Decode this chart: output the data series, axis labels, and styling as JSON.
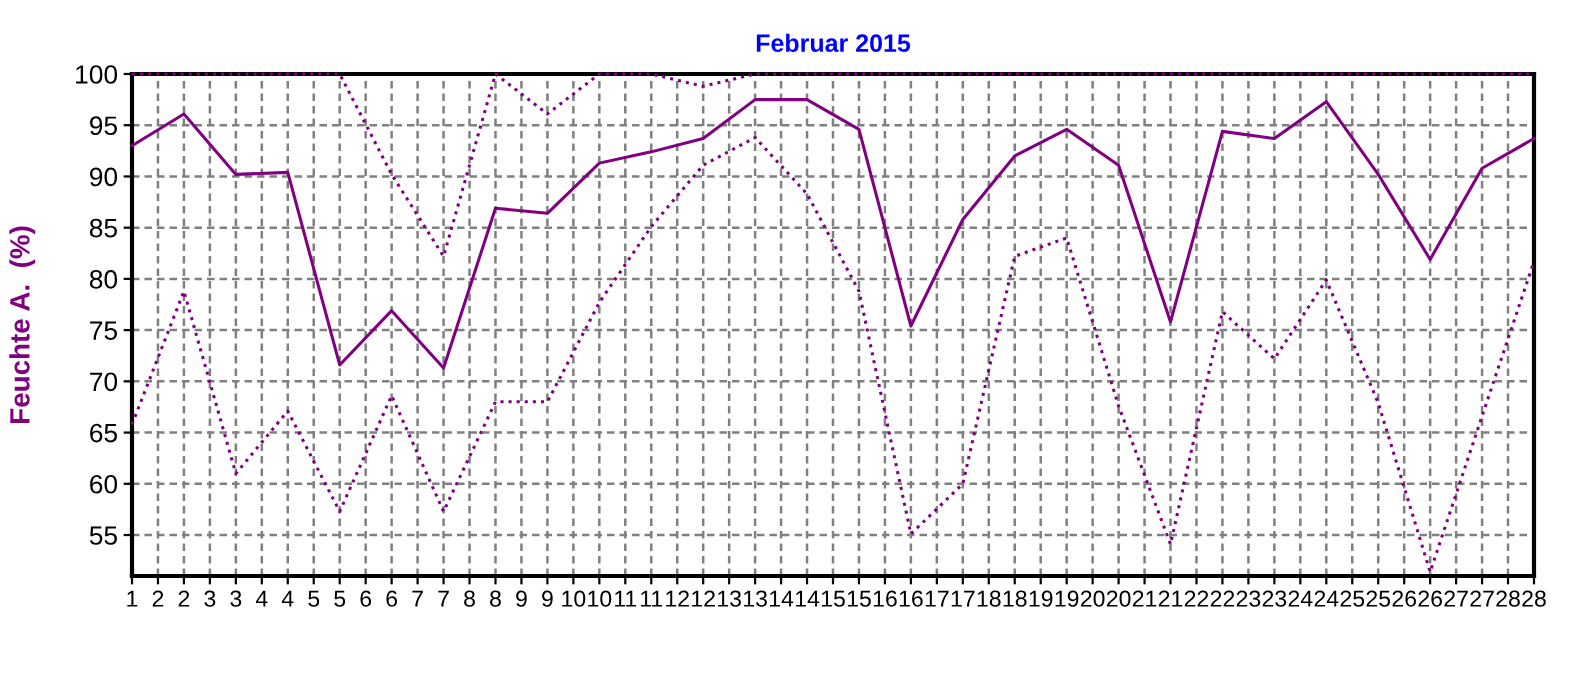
{
  "chart_data": {
    "type": "line",
    "title": "Februar 2015",
    "ylabel": "Feuchte A.  (%)",
    "x": [
      1,
      2,
      3,
      4,
      5,
      6,
      7,
      8,
      9,
      10,
      11,
      12,
      13,
      14,
      15,
      16,
      17,
      18,
      19,
      20,
      21,
      22,
      23,
      24,
      25,
      26,
      27,
      28
    ],
    "series": [
      {
        "color": "#800080",
        "line_style": "dotted",
        "values": [
          100,
          100,
          100,
          100,
          100,
          90.2,
          82.2,
          100,
          96.1,
          100,
          100,
          98.8,
          100,
          100,
          100,
          100,
          100,
          100,
          100,
          100,
          100,
          100,
          100,
          100,
          100,
          100,
          100,
          100
        ]
      },
      {
        "color": "#800080",
        "line_style": "solid",
        "values": [
          93.0,
          96.1,
          90.2,
          90.4,
          71.6,
          76.9,
          71.3,
          86.9,
          86.4,
          91.3,
          92.4,
          93.7,
          97.5,
          97.5,
          94.6,
          75.4,
          85.8,
          92.0,
          94.6,
          91.1,
          75.8,
          94.4,
          93.7,
          97.3,
          90.2,
          81.9,
          90.8,
          93.7
        ]
      },
      {
        "color": "#800080",
        "line_style": "dotted",
        "values": [
          65.8,
          78.8,
          61.0,
          67.1,
          57.3,
          68.6,
          57.3,
          68.0,
          68.0,
          77.7,
          85.1,
          91.1,
          93.8,
          88.3,
          78.8,
          55.1,
          60.0,
          82.2,
          84.0,
          67.6,
          54.1,
          76.8,
          72.2,
          79.9,
          67.9,
          51.4,
          66.6,
          81.7
        ]
      }
    ],
    "xlim": [
      1,
      28
    ],
    "ylim": [
      51,
      100
    ],
    "xticks": [
      1,
      {
        "value": 1.5,
        "label": "2"
      },
      2,
      {
        "value": 2.5,
        "label": "3"
      },
      3,
      {
        "value": 3.5,
        "label": "4"
      },
      4,
      {
        "value": 4.5,
        "label": "5"
      },
      5,
      {
        "value": 5.5,
        "label": "6"
      },
      6,
      {
        "value": 6.5,
        "label": "7"
      },
      7,
      {
        "value": 7.5,
        "label": "8"
      },
      8,
      {
        "value": 8.5,
        "label": "9"
      },
      9,
      {
        "value": 9.5,
        "label": "10"
      },
      10,
      {
        "value": 10.5,
        "label": "11"
      },
      11,
      {
        "value": 11.5,
        "label": "12"
      },
      12,
      {
        "value": 12.5,
        "label": "13"
      },
      13,
      {
        "value": 13.5,
        "label": "14"
      },
      14,
      {
        "value": 14.5,
        "label": "15"
      },
      15,
      {
        "value": 15.5,
        "label": "16"
      },
      16,
      {
        "value": 16.5,
        "label": "17"
      },
      17,
      {
        "value": 17.5,
        "label": "18"
      },
      18,
      {
        "value": 18.5,
        "label": "19"
      },
      19,
      {
        "value": 19.5,
        "label": "20"
      },
      20,
      {
        "value": 20.5,
        "label": "21"
      },
      21,
      {
        "value": 21.5,
        "label": "22"
      },
      22,
      {
        "value": 22.5,
        "label": "23"
      },
      23,
      {
        "value": 23.5,
        "label": "24"
      },
      24,
      {
        "value": 24.5,
        "label": "25"
      },
      25,
      {
        "value": 25.5,
        "label": "26"
      },
      26,
      {
        "value": 26.5,
        "label": "27"
      },
      27,
      {
        "value": 27.5,
        "label": "28"
      },
      28
    ],
    "yticks": [
      55,
      60,
      65,
      70,
      75,
      80,
      85,
      90,
      95,
      100
    ],
    "grid": true,
    "legend": false,
    "marker": "none"
  }
}
